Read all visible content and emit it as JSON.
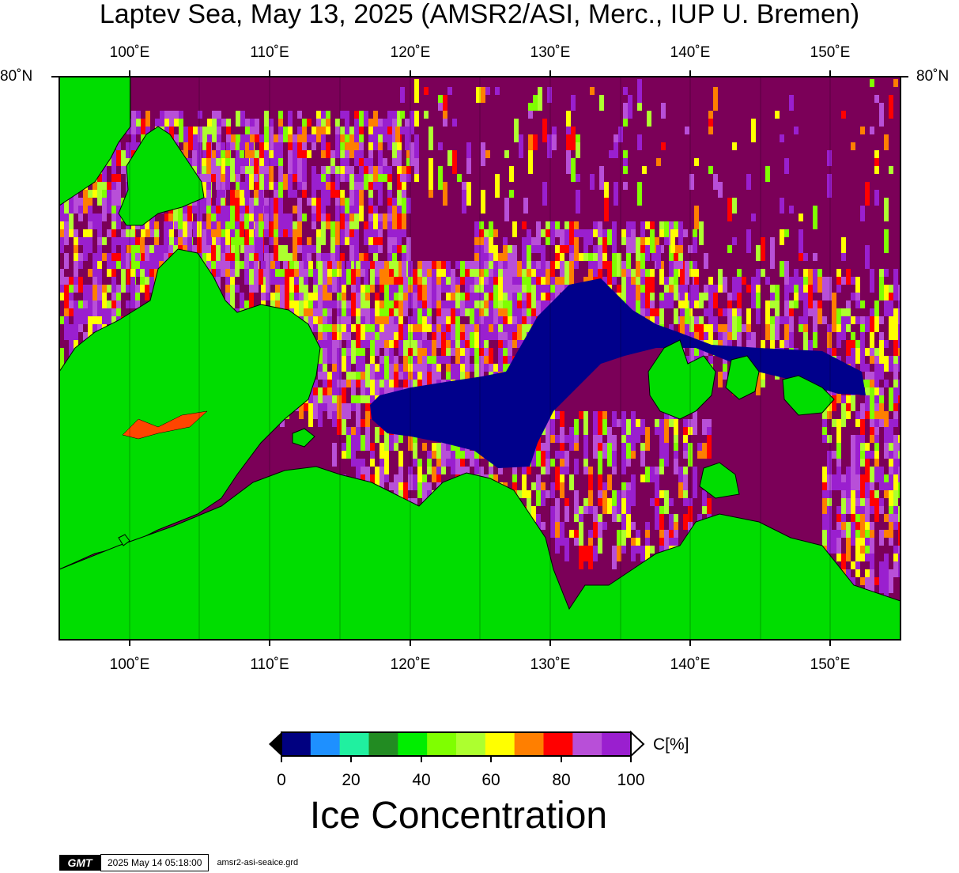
{
  "title": "Laptev Sea, May 13, 2025 (AMSR2/ASI, Merc., IUP U. Bremen)",
  "map": {
    "lon_ticks": [
      "100˚E",
      "110˚E",
      "120˚E",
      "130˚E",
      "140˚E",
      "150˚E"
    ],
    "lat_label_left": "80˚N",
    "lat_label_right": "80˚N",
    "lon_range": [
      95,
      155
    ],
    "land_color": "#00dd00",
    "ocean_color": "#7b0058",
    "lead_color": "#00008b"
  },
  "colorbar": {
    "unit": "C[%]",
    "title": "Ice Concentration",
    "ticks": [
      "0",
      "20",
      "40",
      "60",
      "80",
      "100"
    ],
    "colors": [
      "#000080",
      "#1e90ff",
      "#20f0a0",
      "#228b22",
      "#00ee00",
      "#7fff00",
      "#adff2f",
      "#ffff00",
      "#ff7f00",
      "#ff0000",
      "#b84fd8",
      "#9a1fcf"
    ]
  },
  "footer": {
    "logo": "GMT",
    "timestamp": "2025 May 14 05:18:00",
    "grid_file": "amsr2-asi-seaice.grd"
  }
}
